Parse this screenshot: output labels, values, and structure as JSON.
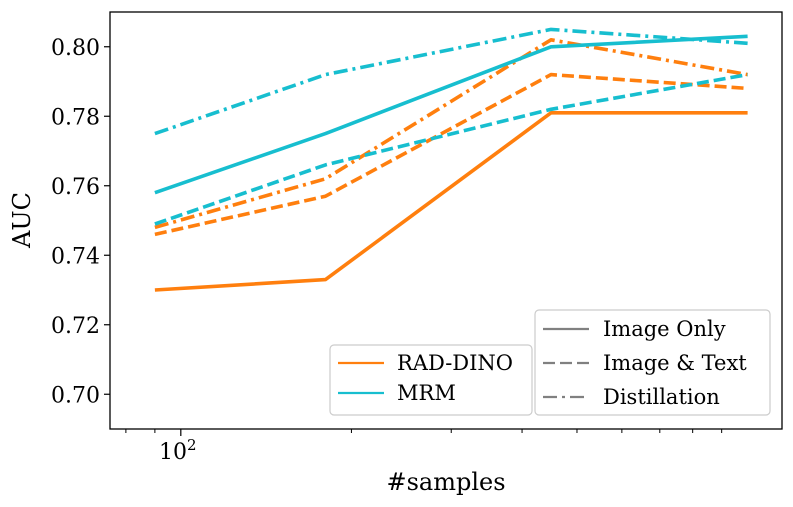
{
  "chart_data": {
    "type": "line",
    "title": "",
    "xlabel": "#samples",
    "ylabel": "AUC",
    "xscale": "log",
    "x": [
      90,
      180,
      450,
      1000
    ],
    "xlim": [
      75,
      1150
    ],
    "ylim": [
      0.69,
      0.81
    ],
    "yticks": [
      0.7,
      0.72,
      0.74,
      0.76,
      0.78,
      0.8
    ],
    "ytick_labels": [
      "0.70",
      "0.72",
      "0.74",
      "0.76",
      "0.78",
      "0.80"
    ],
    "xticks_major": [
      100
    ],
    "xtick_labels": [
      {
        "base": "10",
        "exp": "2"
      }
    ],
    "xticks_minor": [
      80,
      90,
      200,
      300,
      400,
      500,
      600,
      700,
      800,
      900
    ],
    "grid": false,
    "colors": {
      "RAD-DINO": "#ff7f0e",
      "MRM": "#17becf",
      "neutral": "#808080"
    },
    "series": [
      {
        "model": "RAD-DINO",
        "method": "Image Only",
        "style": "solid",
        "values": [
          0.73,
          0.733,
          0.781,
          0.781
        ]
      },
      {
        "model": "RAD-DINO",
        "method": "Image & Text",
        "style": "dashed",
        "values": [
          0.746,
          0.757,
          0.792,
          0.788
        ]
      },
      {
        "model": "RAD-DINO",
        "method": "Distillation",
        "style": "dashdot",
        "values": [
          0.748,
          0.762,
          0.802,
          0.792
        ]
      },
      {
        "model": "MRM",
        "method": "Image Only",
        "style": "solid",
        "values": [
          0.758,
          0.775,
          0.8,
          0.803
        ]
      },
      {
        "model": "MRM",
        "method": "Image & Text",
        "style": "dashed",
        "values": [
          0.749,
          0.766,
          0.782,
          0.792
        ]
      },
      {
        "model": "MRM",
        "method": "Distillation",
        "style": "dashdot",
        "values": [
          0.775,
          0.792,
          0.805,
          0.801
        ]
      }
    ],
    "legend_models": {
      "placement": "lower-center",
      "entries": [
        {
          "label": "RAD-DINO",
          "key": "RAD-DINO"
        },
        {
          "label": "MRM",
          "key": "MRM"
        }
      ]
    },
    "legend_methods": {
      "placement": "lower-right",
      "entries": [
        {
          "label": "Image Only",
          "style": "solid"
        },
        {
          "label": "Image & Text",
          "style": "dashed"
        },
        {
          "label": "Distillation",
          "style": "dashdot"
        }
      ]
    }
  }
}
